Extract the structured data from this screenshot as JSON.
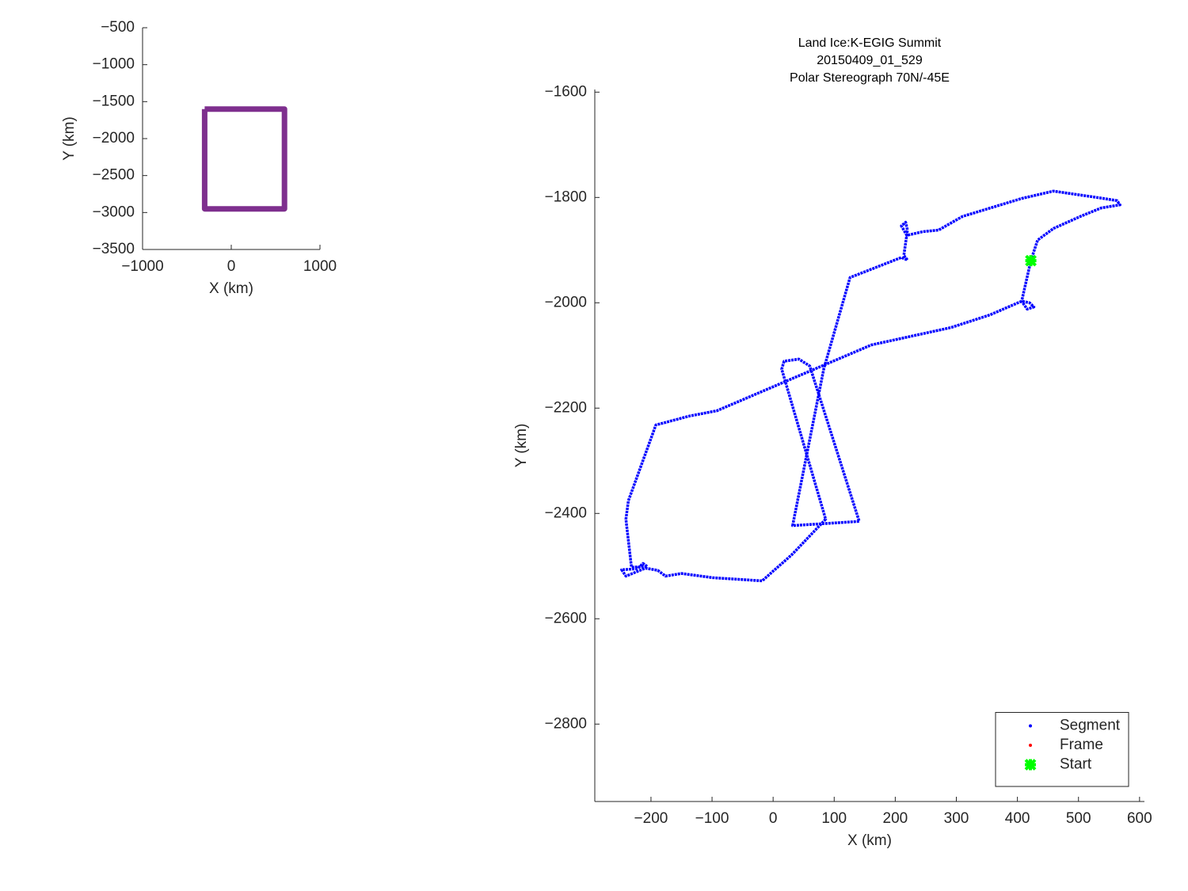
{
  "chart_data": [
    {
      "type": "line",
      "xlabel": "X (km)",
      "ylabel": "Y (km)",
      "xlim": [
        -1000,
        1000
      ],
      "ylim": [
        -3500,
        -500
      ],
      "xticks": [
        {
          "value": -1000,
          "label": "−1000"
        },
        0,
        1000
      ],
      "yticks": [
        {
          "value": -500,
          "label": "−500"
        },
        {
          "value": -1000,
          "label": "−1000"
        },
        {
          "value": -1500,
          "label": "−1500"
        },
        {
          "value": -2000,
          "label": "−2000"
        },
        {
          "value": -2500,
          "label": "−2500"
        },
        {
          "value": -3000,
          "label": "−3000"
        },
        {
          "value": -3500,
          "label": "−3500"
        }
      ],
      "series": [
        {
          "color": "#7e2f8e",
          "x": [
            -300,
            600,
            600,
            -300,
            -300
          ],
          "values": [
            -1600,
            -1600,
            -2950,
            -2950,
            -1600
          ]
        }
      ]
    },
    {
      "type": "line",
      "title": [
        "Land Ice:K-EGIG Summit",
        "20150409_01_529",
        "Polar Stereograph 70N/-45E"
      ],
      "xlabel": "X (km)",
      "ylabel": "Y (km)",
      "xlim": [
        -292,
        608
      ],
      "ylim": [
        -2947,
        -1595
      ],
      "xticks": [
        {
          "value": -200,
          "label": "−200"
        },
        {
          "value": -100,
          "label": "−100"
        },
        0,
        100,
        200,
        300,
        400,
        500,
        600
      ],
      "yticks": [
        {
          "value": -1600,
          "label": "−1600"
        },
        {
          "value": -1800,
          "label": "−1800"
        },
        {
          "value": -2000,
          "label": "−2000"
        },
        {
          "value": -2200,
          "label": "−2200"
        },
        {
          "value": -2400,
          "label": "−2400"
        },
        {
          "value": -2600,
          "label": "−2600"
        },
        {
          "value": -2800,
          "label": "−2800"
        }
      ],
      "legend": "lower right",
      "series": [
        {
          "name": "Segment",
          "color": "#0000ff",
          "marker": ".",
          "x": [
            422,
            433,
            459,
            505,
            537,
            568,
            563,
            530,
            459,
            407,
            310,
            271,
            245,
            219,
            210,
            217,
            220,
            214,
            220,
            210,
            126,
            83,
            32,
            141,
            60,
            42,
            18,
            14,
            86,
            31,
            -18,
            -99,
            -150,
            -176,
            -189,
            -209,
            -241,
            -248,
            -222,
            -213,
            -206,
            -232,
            -241,
            -237,
            -192,
            -137,
            -92,
            31,
            161,
            291,
            355,
            407,
            420,
            427,
            416,
            407,
            422
          ],
          "values": [
            -1920,
            -1881,
            -1859,
            -1835,
            -1820,
            -1814,
            -1806,
            -1800,
            -1788,
            -1802,
            -1836,
            -1862,
            -1865,
            -1872,
            -1854,
            -1847,
            -1862,
            -1910,
            -1919,
            -1914,
            -1952,
            -2125,
            -2423,
            -2415,
            -2120,
            -2107,
            -2111,
            -2126,
            -2411,
            -2478,
            -2528,
            -2522,
            -2514,
            -2519,
            -2508,
            -2504,
            -2519,
            -2507,
            -2505,
            -2495,
            -2501,
            -2502,
            -2411,
            -2376,
            -2232,
            -2215,
            -2205,
            -2144,
            -2080,
            -2047,
            -2023,
            -1997,
            -2000,
            -2008,
            -2012,
            -1997,
            -1920
          ]
        },
        {
          "name": "Frame",
          "color": "#ff0000",
          "marker": ".",
          "x": [
            422
          ],
          "values": [
            -1920
          ]
        },
        {
          "name": "Start",
          "color": "#00ff00",
          "marker": "x",
          "x": [
            422
          ],
          "values": [
            -1920
          ]
        }
      ]
    }
  ]
}
